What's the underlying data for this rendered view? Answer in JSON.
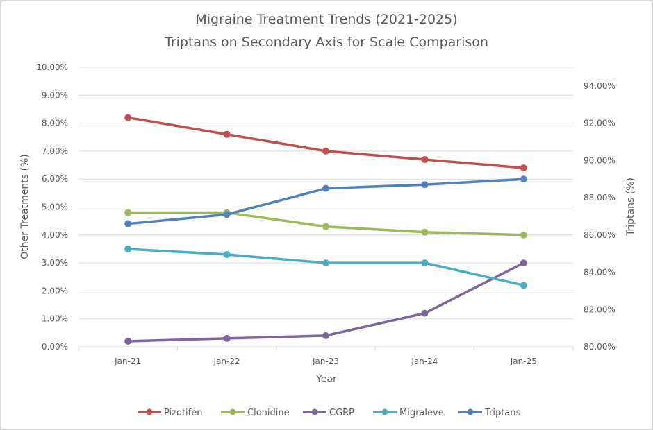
{
  "chart_data": {
    "type": "line",
    "title": "Migraine Treatment Trends (2021-2025)",
    "subtitle": "Triptans on Secondary Axis for Scale Comparison",
    "xlabel": "Year",
    "ylabel": "Other Treatments (%)",
    "y2label": "Triptans (%)",
    "categories": [
      "Jan-21",
      "Jan-22",
      "Jan-23",
      "Jan-24",
      "Jan-25"
    ],
    "ylim": [
      0,
      10
    ],
    "y_ticks": [
      0,
      1,
      2,
      3,
      4,
      5,
      6,
      7,
      8,
      9,
      10
    ],
    "y_tick_labels": [
      "0.00%",
      "1.00%",
      "2.00%",
      "3.00%",
      "4.00%",
      "5.00%",
      "6.00%",
      "7.00%",
      "8.00%",
      "9.00%",
      "10.00%"
    ],
    "y2lim": [
      80,
      95
    ],
    "y2_ticks": [
      80,
      82,
      84,
      86,
      88,
      90,
      92,
      94
    ],
    "y2_tick_labels": [
      "80.00%",
      "82.00%",
      "84.00%",
      "86.00%",
      "88.00%",
      "90.00%",
      "92.00%",
      "94.00%"
    ],
    "grid": true,
    "legend_position": "bottom",
    "series": [
      {
        "name": "Pizotifen",
        "axis": "primary",
        "color": "#c0504d",
        "values": [
          8.2,
          7.6,
          7.0,
          6.7,
          6.4
        ]
      },
      {
        "name": "Clonidine",
        "axis": "primary",
        "color": "#9bbb59",
        "values": [
          4.8,
          4.8,
          4.3,
          4.1,
          4.0
        ]
      },
      {
        "name": "CGRP",
        "axis": "primary",
        "color": "#8064a2",
        "values": [
          0.2,
          0.3,
          0.4,
          1.2,
          3.0
        ]
      },
      {
        "name": "Migraleve",
        "axis": "primary",
        "color": "#4bacc6",
        "values": [
          3.5,
          3.3,
          3.0,
          3.0,
          2.2
        ]
      },
      {
        "name": "Triptans",
        "axis": "secondary",
        "color": "#4f81bd",
        "values": [
          86.6,
          87.1,
          88.5,
          88.7,
          89.0
        ]
      }
    ]
  }
}
